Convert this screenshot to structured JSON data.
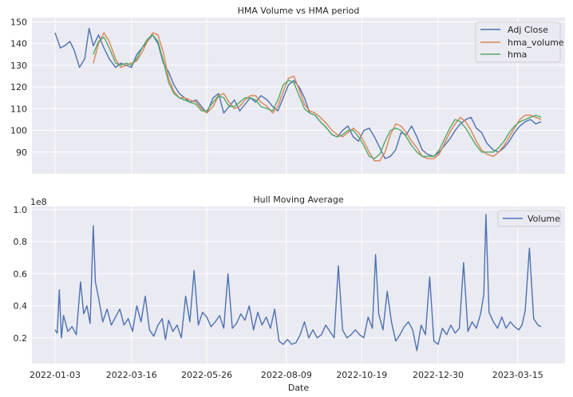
{
  "chart_data": [
    {
      "type": "line",
      "title": "HMA Volume vs HMA period",
      "xlabel": "",
      "ylabel": "",
      "ylim": [
        80,
        152
      ],
      "yticks": [
        90,
        100,
        110,
        120,
        130,
        140,
        150
      ],
      "legend_position": "top-right",
      "grid": true,
      "series": [
        {
          "name": "Adj Close",
          "color": "#4c72b0",
          "x": [
            "2022-01-03",
            "2022-01-08",
            "2022-01-12",
            "2022-01-17",
            "2022-01-21",
            "2022-01-26",
            "2022-01-31",
            "2022-02-04",
            "2022-02-08",
            "2022-02-13",
            "2022-02-18",
            "2022-02-23",
            "2022-03-01",
            "2022-03-06",
            "2022-03-11",
            "2022-03-16",
            "2022-03-21",
            "2022-03-26",
            "2022-03-31",
            "2022-04-05",
            "2022-04-10",
            "2022-04-15",
            "2022-04-20",
            "2022-04-25",
            "2022-04-30",
            "2022-05-05",
            "2022-05-10",
            "2022-05-16",
            "2022-05-21",
            "2022-05-26",
            "2022-06-01",
            "2022-06-06",
            "2022-06-11",
            "2022-06-16",
            "2022-06-21",
            "2022-06-26",
            "2022-07-01",
            "2022-07-06",
            "2022-07-11",
            "2022-07-16",
            "2022-07-22",
            "2022-07-27",
            "2022-08-01",
            "2022-08-06",
            "2022-08-11",
            "2022-08-16",
            "2022-08-21",
            "2022-08-26",
            "2022-08-31",
            "2022-09-05",
            "2022-09-10",
            "2022-09-16",
            "2022-09-21",
            "2022-09-26",
            "2022-10-01",
            "2022-10-06",
            "2022-10-11",
            "2022-10-16",
            "2022-10-21",
            "2022-10-26",
            "2022-10-31",
            "2022-11-05",
            "2022-11-10",
            "2022-11-15",
            "2022-11-20",
            "2022-11-25",
            "2022-11-30",
            "2022-12-05",
            "2022-12-10",
            "2022-12-15",
            "2022-12-20",
            "2022-12-26",
            "2022-12-31",
            "2023-01-05",
            "2023-01-10",
            "2023-01-15",
            "2023-01-20",
            "2023-01-25",
            "2023-01-30",
            "2023-02-04",
            "2023-02-09",
            "2023-02-14",
            "2023-02-20",
            "2023-02-25",
            "2023-03-02",
            "2023-03-07",
            "2023-03-12",
            "2023-03-17",
            "2023-03-22",
            "2023-03-27",
            "2023-04-01",
            "2023-04-06"
          ],
          "y": [
            145,
            138,
            139,
            141,
            137,
            129,
            133,
            147,
            139,
            144,
            138,
            133,
            129,
            131,
            130,
            129,
            135,
            138,
            141,
            144,
            140,
            131,
            127,
            121,
            117,
            115,
            113,
            114,
            111,
            108,
            115,
            117,
            108,
            111,
            114,
            109,
            112,
            115,
            113,
            116,
            114,
            111,
            109,
            115,
            121,
            123,
            120,
            115,
            108,
            107,
            104,
            101,
            98,
            97,
            100,
            102,
            97,
            95,
            100,
            101,
            97,
            92,
            87,
            88,
            91,
            99,
            98,
            102,
            97,
            91,
            89,
            88,
            90,
            93,
            96,
            100,
            103,
            105,
            106,
            101,
            99,
            94,
            91,
            90,
            92,
            95,
            99,
            102,
            104,
            105,
            103,
            104
          ]
        },
        {
          "name": "hma_volume",
          "color": "#dd8452",
          "x": [
            "2022-02-08",
            "2022-02-13",
            "2022-02-18",
            "2022-02-23",
            "2022-03-01",
            "2022-03-06",
            "2022-03-11",
            "2022-03-16",
            "2022-03-21",
            "2022-03-26",
            "2022-03-31",
            "2022-04-05",
            "2022-04-10",
            "2022-04-15",
            "2022-04-20",
            "2022-04-25",
            "2022-04-30",
            "2022-05-05",
            "2022-05-10",
            "2022-05-16",
            "2022-05-21",
            "2022-05-26",
            "2022-06-01",
            "2022-06-06",
            "2022-06-11",
            "2022-06-16",
            "2022-06-21",
            "2022-06-26",
            "2022-07-01",
            "2022-07-06",
            "2022-07-11",
            "2022-07-16",
            "2022-07-22",
            "2022-07-27",
            "2022-08-01",
            "2022-08-06",
            "2022-08-11",
            "2022-08-16",
            "2022-08-21",
            "2022-08-26",
            "2022-08-31",
            "2022-09-05",
            "2022-09-10",
            "2022-09-16",
            "2022-09-21",
            "2022-09-26",
            "2022-10-01",
            "2022-10-06",
            "2022-10-11",
            "2022-10-16",
            "2022-10-21",
            "2022-10-26",
            "2022-10-31",
            "2022-11-05",
            "2022-11-10",
            "2022-11-15",
            "2022-11-20",
            "2022-11-25",
            "2022-11-30",
            "2022-12-05",
            "2022-12-10",
            "2022-12-15",
            "2022-12-20",
            "2022-12-26",
            "2022-12-31",
            "2023-01-05",
            "2023-01-10",
            "2023-01-15",
            "2023-01-20",
            "2023-01-25",
            "2023-01-30",
            "2023-02-04",
            "2023-02-09",
            "2023-02-14",
            "2023-02-20",
            "2023-02-25",
            "2023-03-02",
            "2023-03-07",
            "2023-03-12",
            "2023-03-17",
            "2023-03-22",
            "2023-03-27",
            "2023-04-01",
            "2023-04-06"
          ],
          "y": [
            131,
            140,
            145,
            141,
            133,
            129,
            130,
            131,
            132,
            136,
            141,
            145,
            144,
            136,
            124,
            118,
            115,
            115,
            114,
            113,
            110,
            108,
            111,
            116,
            117,
            113,
            110,
            111,
            114,
            116,
            116,
            113,
            111,
            108,
            111,
            118,
            124,
            125,
            119,
            112,
            109,
            108,
            106,
            103,
            100,
            98,
            97,
            99,
            101,
            99,
            95,
            90,
            86,
            86,
            90,
            98,
            103,
            102,
            99,
            95,
            92,
            88,
            87,
            87,
            89,
            94,
            99,
            103,
            106,
            104,
            100,
            95,
            91,
            89,
            88,
            90,
            93,
            97,
            101,
            105,
            107,
            107,
            106,
            105
          ]
        },
        {
          "name": "hma",
          "color": "#55a868",
          "x": [
            "2022-02-08",
            "2022-02-13",
            "2022-02-18",
            "2022-02-23",
            "2022-03-01",
            "2022-03-06",
            "2022-03-11",
            "2022-03-16",
            "2022-03-21",
            "2022-03-26",
            "2022-03-31",
            "2022-04-05",
            "2022-04-10",
            "2022-04-15",
            "2022-04-20",
            "2022-04-25",
            "2022-04-30",
            "2022-05-05",
            "2022-05-10",
            "2022-05-16",
            "2022-05-21",
            "2022-05-26",
            "2022-06-01",
            "2022-06-06",
            "2022-06-11",
            "2022-06-16",
            "2022-06-21",
            "2022-06-26",
            "2022-07-01",
            "2022-07-06",
            "2022-07-11",
            "2022-07-16",
            "2022-07-22",
            "2022-07-27",
            "2022-08-01",
            "2022-08-06",
            "2022-08-11",
            "2022-08-16",
            "2022-08-21",
            "2022-08-26",
            "2022-08-31",
            "2022-09-05",
            "2022-09-10",
            "2022-09-16",
            "2022-09-21",
            "2022-09-26",
            "2022-10-01",
            "2022-10-06",
            "2022-10-11",
            "2022-10-16",
            "2022-10-21",
            "2022-10-26",
            "2022-10-31",
            "2022-11-05",
            "2022-11-10",
            "2022-11-15",
            "2022-11-20",
            "2022-11-25",
            "2022-11-30",
            "2022-12-05",
            "2022-12-10",
            "2022-12-15",
            "2022-12-20",
            "2022-12-26",
            "2022-12-31",
            "2023-01-05",
            "2023-01-10",
            "2023-01-15",
            "2023-01-20",
            "2023-01-25",
            "2023-01-30",
            "2023-02-04",
            "2023-02-09",
            "2023-02-14",
            "2023-02-20",
            "2023-02-25",
            "2023-03-02",
            "2023-03-07",
            "2023-03-12",
            "2023-03-17",
            "2023-03-22",
            "2023-03-27",
            "2023-04-01",
            "2023-04-06"
          ],
          "y": [
            135,
            141,
            143,
            138,
            131,
            130,
            131,
            130,
            133,
            138,
            142,
            144,
            141,
            132,
            122,
            117,
            115,
            114,
            113,
            112,
            109,
            109,
            113,
            116,
            115,
            111,
            111,
            113,
            115,
            115,
            114,
            111,
            110,
            109,
            114,
            121,
            123,
            122,
            116,
            110,
            108,
            107,
            104,
            101,
            98,
            97,
            98,
            100,
            100,
            97,
            93,
            88,
            87,
            89,
            95,
            100,
            101,
            100,
            97,
            93,
            90,
            88,
            88,
            88,
            91,
            96,
            101,
            105,
            104,
            101,
            97,
            93,
            90,
            90,
            90,
            92,
            95,
            99,
            102,
            104,
            105,
            106,
            107,
            106
          ]
        }
      ],
      "xticks": [
        "2022-01-03",
        "2022-03-16",
        "2022-05-26",
        "2022-08-09",
        "2022-10-19",
        "2022-12-30",
        "2023-03-15"
      ]
    },
    {
      "type": "line",
      "title": "Hull Moving Average",
      "xlabel": "Date",
      "ylabel": "",
      "y_scale_label": "1e8",
      "ylim": [
        0.04,
        1.02
      ],
      "yticks": [
        0.2,
        0.4,
        0.6,
        0.8,
        1.0
      ],
      "ytick_labels": [
        "0.2",
        "0.4",
        "0.6",
        "0.8",
        "1.0"
      ],
      "legend_position": "top-right",
      "grid": true,
      "series": [
        {
          "name": "Volume",
          "color": "#4c72b0",
          "x": [
            "2022-01-03",
            "2022-01-05",
            "2022-01-07",
            "2022-01-09",
            "2022-01-11",
            "2022-01-15",
            "2022-01-19",
            "2022-01-23",
            "2022-01-27",
            "2022-01-30",
            "2022-02-02",
            "2022-02-05",
            "2022-02-08",
            "2022-02-10",
            "2022-02-13",
            "2022-02-17",
            "2022-02-21",
            "2022-02-25",
            "2022-03-01",
            "2022-03-05",
            "2022-03-09",
            "2022-03-13",
            "2022-03-17",
            "2022-03-21",
            "2022-03-25",
            "2022-03-29",
            "2022-04-02",
            "2022-04-06",
            "2022-04-10",
            "2022-04-14",
            "2022-04-17",
            "2022-04-20",
            "2022-04-24",
            "2022-04-28",
            "2022-05-02",
            "2022-05-06",
            "2022-05-10",
            "2022-05-14",
            "2022-05-18",
            "2022-05-22",
            "2022-05-26",
            "2022-05-30",
            "2022-06-03",
            "2022-06-07",
            "2022-06-11",
            "2022-06-15",
            "2022-06-19",
            "2022-06-23",
            "2022-06-27",
            "2022-07-01",
            "2022-07-05",
            "2022-07-09",
            "2022-07-13",
            "2022-07-17",
            "2022-07-21",
            "2022-07-25",
            "2022-07-29",
            "2022-08-02",
            "2022-08-06",
            "2022-08-10",
            "2022-08-14",
            "2022-08-18",
            "2022-08-22",
            "2022-08-26",
            "2022-08-30",
            "2022-09-03",
            "2022-09-07",
            "2022-09-11",
            "2022-09-15",
            "2022-09-19",
            "2022-09-23",
            "2022-09-27",
            "2022-10-01",
            "2022-10-05",
            "2022-10-09",
            "2022-10-13",
            "2022-10-17",
            "2022-10-21",
            "2022-10-25",
            "2022-10-29",
            "2022-11-01",
            "2022-11-04",
            "2022-11-08",
            "2022-11-12",
            "2022-11-16",
            "2022-11-20",
            "2022-11-24",
            "2022-11-28",
            "2022-12-02",
            "2022-12-06",
            "2022-12-10",
            "2022-12-14",
            "2022-12-18",
            "2022-12-22",
            "2022-12-26",
            "2022-12-30",
            "2023-01-03",
            "2023-01-07",
            "2023-01-11",
            "2023-01-15",
            "2023-01-19",
            "2023-01-23",
            "2023-01-27",
            "2023-01-31",
            "2023-02-04",
            "2023-02-08",
            "2023-02-11",
            "2023-02-13",
            "2023-02-16",
            "2023-02-20",
            "2023-02-24",
            "2023-02-28",
            "2023-03-04",
            "2023-03-08",
            "2023-03-12",
            "2023-03-16",
            "2023-03-19",
            "2023-03-22",
            "2023-03-26",
            "2023-03-30",
            "2023-04-03",
            "2023-04-06"
          ],
          "y": [
            0.25,
            0.23,
            0.5,
            0.2,
            0.34,
            0.24,
            0.27,
            0.22,
            0.55,
            0.35,
            0.4,
            0.29,
            0.9,
            0.55,
            0.45,
            0.3,
            0.38,
            0.28,
            0.33,
            0.38,
            0.28,
            0.32,
            0.24,
            0.4,
            0.3,
            0.46,
            0.25,
            0.21,
            0.28,
            0.32,
            0.19,
            0.31,
            0.24,
            0.28,
            0.2,
            0.46,
            0.3,
            0.62,
            0.28,
            0.36,
            0.33,
            0.27,
            0.3,
            0.34,
            0.26,
            0.6,
            0.26,
            0.29,
            0.35,
            0.31,
            0.4,
            0.25,
            0.36,
            0.28,
            0.33,
            0.26,
            0.38,
            0.18,
            0.16,
            0.19,
            0.16,
            0.17,
            0.22,
            0.3,
            0.2,
            0.25,
            0.2,
            0.22,
            0.28,
            0.24,
            0.2,
            0.65,
            0.25,
            0.2,
            0.22,
            0.25,
            0.22,
            0.2,
            0.33,
            0.26,
            0.72,
            0.35,
            0.25,
            0.49,
            0.3,
            0.18,
            0.22,
            0.27,
            0.3,
            0.25,
            0.12,
            0.28,
            0.22,
            0.58,
            0.18,
            0.16,
            0.26,
            0.22,
            0.28,
            0.23,
            0.26,
            0.67,
            0.24,
            0.3,
            0.26,
            0.35,
            0.47,
            0.97,
            0.36,
            0.3,
            0.26,
            0.33,
            0.26,
            0.3,
            0.27,
            0.25,
            0.28,
            0.37,
            0.76,
            0.32,
            0.28,
            0.27
          ]
        }
      ],
      "xticks": [
        "2022-01-03",
        "2022-03-16",
        "2022-05-26",
        "2022-08-09",
        "2022-10-19",
        "2022-12-30",
        "2023-03-15"
      ]
    }
  ]
}
